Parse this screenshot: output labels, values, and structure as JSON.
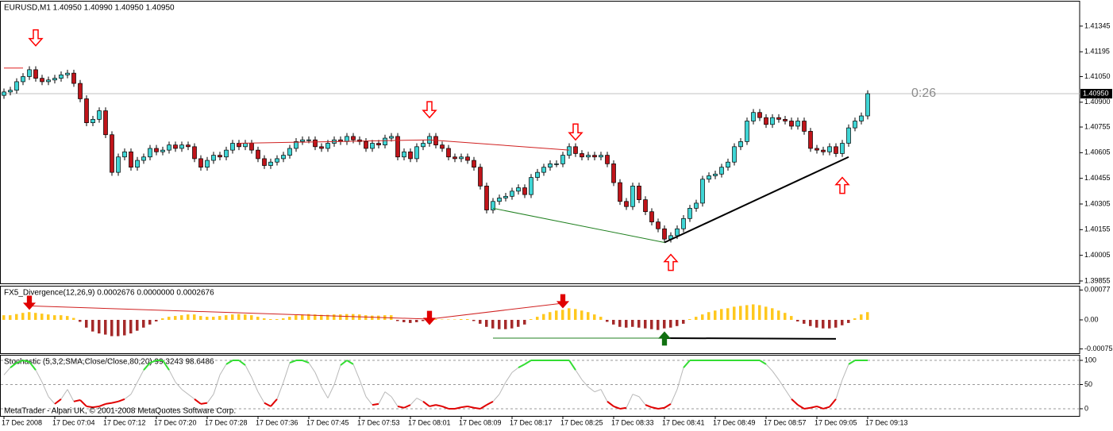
{
  "chart_data": [
    {
      "type": "candlestick",
      "title": "EURUSD,M1  1.40950 1.40990 1.40950 1.40950",
      "open": [
        1.4094,
        1.4096,
        1.4097,
        1.4102,
        1.4105,
        1.4109,
        1.4104,
        1.4102,
        1.4103,
        1.4104,
        1.4106,
        1.4107,
        1.4101,
        1.4092,
        1.4078,
        1.408,
        1.4085,
        1.4071,
        1.4049,
        1.4058,
        1.4061,
        1.4052,
        1.4056,
        1.4058,
        1.4063,
        1.4061,
        1.4062,
        1.4065,
        1.4063,
        1.4065,
        1.4064,
        1.4057,
        1.4052,
        1.4056,
        1.4059,
        1.4058,
        1.4062,
        1.4066,
        1.4064,
        1.4066,
        1.4062,
        1.4057,
        1.4053,
        1.4055,
        1.4057,
        1.4059,
        1.4063,
        1.4067,
        1.4068,
        1.4068,
        1.4064,
        1.4063,
        1.4066,
        1.4068,
        1.4067,
        1.407,
        1.4068,
        1.4067,
        1.4063,
        1.4066,
        1.4065,
        1.4069,
        1.407,
        1.4058,
        1.4061,
        1.4057,
        1.4064,
        1.4066,
        1.407,
        1.4065,
        1.4063,
        1.4058,
        1.4057,
        1.4058,
        1.4056,
        1.4052,
        1.4041,
        1.4027,
        1.4032,
        1.4034,
        1.4035,
        1.4038,
        1.404,
        1.4036,
        1.4046,
        1.4049,
        1.4052,
        1.4054,
        1.4054,
        1.4059,
        1.4064,
        1.406,
        1.4058,
        1.4059,
        1.4058,
        1.4059,
        1.4054,
        1.4043,
        1.4032,
        1.4029,
        1.4041,
        1.4033,
        1.4026,
        1.402,
        1.4016,
        1.401,
        1.4012,
        1.4016,
        1.4022,
        1.4028,
        1.4031,
        1.4045,
        1.4047,
        1.4048,
        1.4052,
        1.4055,
        1.4064,
        1.4067,
        1.4079,
        1.4084,
        1.4081,
        1.4077,
        1.4081,
        1.408,
        1.4079,
        1.4076,
        1.4079,
        1.4073,
        1.4063,
        1.4062,
        1.4061,
        1.4064,
        1.406,
        1.4066,
        1.4075,
        1.4079,
        1.4082
      ],
      "high": [
        1.4098,
        1.4099,
        1.4104,
        1.4107,
        1.4111,
        1.4111,
        1.4106,
        1.4105,
        1.4106,
        1.4108,
        1.4109,
        1.4109,
        1.4103,
        1.4094,
        1.4082,
        1.4087,
        1.4087,
        1.4073,
        1.406,
        1.4063,
        1.4063,
        1.4058,
        1.406,
        1.4065,
        1.4065,
        1.4064,
        1.4067,
        1.4067,
        1.4067,
        1.4067,
        1.4066,
        1.4059,
        1.4058,
        1.4061,
        1.4061,
        1.4064,
        1.4068,
        1.4068,
        1.4068,
        1.4068,
        1.4064,
        1.4059,
        1.4057,
        1.4059,
        1.4061,
        1.4065,
        1.4069,
        1.407,
        1.407,
        1.407,
        1.4066,
        1.4068,
        1.407,
        1.407,
        1.4072,
        1.4072,
        1.407,
        1.4069,
        1.4068,
        1.4068,
        1.4071,
        1.4072,
        1.4072,
        1.4063,
        1.4063,
        1.4066,
        1.4068,
        1.4072,
        1.4072,
        1.4067,
        1.4065,
        1.406,
        1.406,
        1.406,
        1.4058,
        1.4054,
        1.4043,
        1.4034,
        1.4036,
        1.4037,
        1.404,
        1.4042,
        1.4042,
        1.4048,
        1.4051,
        1.4054,
        1.4056,
        1.4056,
        1.4061,
        1.4066,
        1.4066,
        1.4062,
        1.4061,
        1.4061,
        1.4061,
        1.4061,
        1.4056,
        1.4045,
        1.4034,
        1.4043,
        1.4043,
        1.4035,
        1.4028,
        1.4022,
        1.4018,
        1.4014,
        1.4018,
        1.4024,
        1.403,
        1.4033,
        1.4047,
        1.4049,
        1.405,
        1.4054,
        1.4057,
        1.4066,
        1.4069,
        1.4081,
        1.4086,
        1.4086,
        1.4083,
        1.4083,
        1.4083,
        1.4082,
        1.4081,
        1.4081,
        1.4081,
        1.4075,
        1.4065,
        1.4064,
        1.4066,
        1.4066,
        1.4068,
        1.4077,
        1.4081,
        1.4084,
        1.4097
      ],
      "low": [
        1.4092,
        1.4094,
        1.4095,
        1.41,
        1.4103,
        1.4102,
        1.41,
        1.41,
        1.4101,
        1.4102,
        1.4104,
        1.4099,
        1.409,
        1.4076,
        1.4076,
        1.4078,
        1.4069,
        1.4047,
        1.4047,
        1.4056,
        1.405,
        1.405,
        1.4054,
        1.4056,
        1.4059,
        1.4059,
        1.406,
        1.4061,
        1.4061,
        1.4062,
        1.4055,
        1.405,
        1.405,
        1.4054,
        1.4056,
        1.4056,
        1.406,
        1.4062,
        1.4062,
        1.406,
        1.4055,
        1.4051,
        1.4051,
        1.4053,
        1.4055,
        1.4057,
        1.4061,
        1.4065,
        1.4066,
        1.4062,
        1.4061,
        1.4061,
        1.4064,
        1.4065,
        1.4065,
        1.4066,
        1.4065,
        1.4061,
        1.4061,
        1.4063,
        1.4063,
        1.4067,
        1.4056,
        1.4056,
        1.4055,
        1.4055,
        1.4062,
        1.4064,
        1.4063,
        1.4061,
        1.4056,
        1.4055,
        1.4055,
        1.4054,
        1.405,
        1.4039,
        1.4025,
        1.4025,
        1.403,
        1.4032,
        1.4033,
        1.4036,
        1.4034,
        1.4034,
        1.4044,
        1.4047,
        1.405,
        1.4052,
        1.4052,
        1.4057,
        1.4058,
        1.4056,
        1.4056,
        1.4056,
        1.4056,
        1.4052,
        1.4041,
        1.403,
        1.4027,
        1.4027,
        1.4031,
        1.4024,
        1.4018,
        1.4014,
        1.4008,
        1.4008,
        1.401,
        1.4014,
        1.402,
        1.4026,
        1.4029,
        1.4043,
        1.4045,
        1.4046,
        1.405,
        1.4053,
        1.4062,
        1.4065,
        1.4077,
        1.4079,
        1.4075,
        1.4075,
        1.4078,
        1.4077,
        1.4074,
        1.4074,
        1.4071,
        1.4061,
        1.406,
        1.4059,
        1.4059,
        1.4058,
        1.4058,
        1.4064,
        1.4073,
        1.4077,
        1.408
      ],
      "close": [
        1.4096,
        1.4097,
        1.4102,
        1.4105,
        1.4109,
        1.4104,
        1.4102,
        1.4103,
        1.4104,
        1.4106,
        1.4107,
        1.4101,
        1.4092,
        1.4078,
        1.408,
        1.4085,
        1.4071,
        1.4049,
        1.4058,
        1.4061,
        1.4052,
        1.4056,
        1.4058,
        1.4063,
        1.4061,
        1.4062,
        1.4065,
        1.4063,
        1.4065,
        1.4064,
        1.4057,
        1.4052,
        1.4056,
        1.4059,
        1.4058,
        1.4062,
        1.4066,
        1.4064,
        1.4066,
        1.4062,
        1.4057,
        1.4053,
        1.4055,
        1.4057,
        1.4059,
        1.4063,
        1.4067,
        1.4068,
        1.4068,
        1.4064,
        1.4063,
        1.4066,
        1.4068,
        1.4067,
        1.407,
        1.4068,
        1.4067,
        1.4063,
        1.4066,
        1.4065,
        1.4069,
        1.407,
        1.4058,
        1.4061,
        1.4057,
        1.4064,
        1.4066,
        1.407,
        1.4065,
        1.4063,
        1.4058,
        1.4057,
        1.4058,
        1.4056,
        1.4052,
        1.4041,
        1.4027,
        1.4032,
        1.4034,
        1.4035,
        1.4038,
        1.404,
        1.4036,
        1.4046,
        1.4049,
        1.4052,
        1.4054,
        1.4054,
        1.4059,
        1.4064,
        1.406,
        1.4058,
        1.4059,
        1.4058,
        1.4059,
        1.4054,
        1.4043,
        1.4032,
        1.4029,
        1.4041,
        1.4033,
        1.4026,
        1.402,
        1.4016,
        1.401,
        1.4012,
        1.4016,
        1.4022,
        1.4028,
        1.4031,
        1.4045,
        1.4047,
        1.4048,
        1.4052,
        1.4055,
        1.4064,
        1.4067,
        1.4079,
        1.4084,
        1.4081,
        1.4077,
        1.4081,
        1.408,
        1.4079,
        1.4076,
        1.4079,
        1.4073,
        1.4063,
        1.4062,
        1.4061,
        1.4064,
        1.406,
        1.4066,
        1.4075,
        1.4079,
        1.4082,
        1.4095
      ],
      "up_color": "#3fd5d5",
      "down_color": "#c0141a",
      "wick_color": "#000000",
      "ylim": [
        1.39841,
        1.41493
      ],
      "yticks": [
        1.41345,
        1.41195,
        {
          "value": 1.4105,
          "label": "1.41050"
        },
        {
          "value": 1.409,
          "label": "1.40900"
        },
        1.40755,
        1.40605,
        1.40455,
        1.40305,
        1.40155,
        {
          "value": 1.40005,
          "label": "1.40005"
        },
        1.39855
      ],
      "grid": false,
      "last_price": {
        "value": 1.4095,
        "label": "1.40950"
      },
      "countdown": "0:26",
      "arrow_style": "hollow",
      "trendlines": [
        {
          "color": "#e02020",
          "points": [
            [
              0,
              1.411
            ],
            [
              3,
              1.411
            ]
          ]
        },
        {
          "color": "#d02020",
          "points": [
            [
              37,
              1.4066
            ],
            [
              67,
              1.4068
            ],
            [
              89,
              1.4062
            ]
          ]
        },
        {
          "color": "#208020",
          "points": [
            [
              77,
              1.4028
            ],
            [
              104,
              1.4008
            ]
          ]
        },
        {
          "color": "#000000",
          "points": [
            [
              104,
              1.4008
            ],
            [
              133,
              1.4058
            ]
          ]
        }
      ],
      "arrows": [
        {
          "index": 5,
          "value": 1.4123,
          "direction": "down",
          "color": "#ff0000"
        },
        {
          "index": 67,
          "value": 1.4081,
          "direction": "down",
          "color": "#ff0000"
        },
        {
          "index": 90,
          "value": 1.4068,
          "direction": "down",
          "color": "#ff0000"
        },
        {
          "index": 105,
          "value": 1.4001,
          "direction": "up",
          "color": "#ff0000"
        },
        {
          "index": 132,
          "value": 1.4046,
          "direction": "up",
          "color": "#ff0000"
        }
      ]
    },
    {
      "type": "histogram",
      "title": "FX5_Divergence(12,26,9) 0.0002676 0.0000000 0.0002676",
      "values": [
        0.00012,
        0.00012,
        0.00015,
        0.00018,
        0.0002,
        0.00018,
        0.00016,
        0.00014,
        0.00012,
        0.00012,
        0.0001,
        5e-05,
        -5e-05,
        -0.0002,
        -0.0003,
        -0.00035,
        -0.00038,
        -0.00042,
        -0.00042,
        -0.0004,
        -0.00035,
        -0.00028,
        -0.0002,
        -0.00012,
        -4e-05,
        4e-05,
        8e-05,
        0.0001,
        0.00012,
        0.00014,
        0.00014,
        0.0001,
        8e-05,
        8e-05,
        0.0001,
        0.00012,
        0.00014,
        0.00015,
        0.00014,
        0.00012,
        8e-05,
        4e-05,
        2e-05,
        2e-05,
        4e-05,
        8e-05,
        0.00012,
        0.00014,
        0.00015,
        0.00014,
        0.00013,
        0.00013,
        0.00014,
        0.00014,
        0.00015,
        0.00015,
        0.00014,
        0.00012,
        0.00011,
        0.00011,
        0.00012,
        0.00012,
        -3e-05,
        -6e-05,
        -8e-05,
        -6e-05,
        -3e-05,
        2e-05,
        2e-05,
        1e-05,
        1e-05,
        1e-05,
        2e-05,
        2e-05,
        -3e-05,
        -0.0001,
        -0.00018,
        -0.00022,
        -0.00024,
        -0.00024,
        -0.00022,
        -0.00018,
        -0.00012,
        2e-05,
        8e-05,
        0.00015,
        0.0002,
        0.00024,
        0.00026,
        0.0003,
        0.00028,
        0.00024,
        0.0002,
        0.00014,
        8e-05,
        -5e-05,
        -0.00012,
        -0.00018,
        -0.0002,
        -0.00018,
        -0.0002,
        -0.00022,
        -0.00024,
        -0.00026,
        -0.00022,
        -0.0002,
        -0.00016,
        -0.0001,
        2e-05,
        8e-05,
        0.00014,
        0.0002,
        0.00024,
        0.00028,
        0.0003,
        0.00034,
        0.00036,
        0.00038,
        0.0004,
        0.00038,
        0.00034,
        0.0003,
        0.00024,
        0.00018,
        0.0001,
        -4e-05,
        -0.0001,
        -0.00016,
        -0.0002,
        -0.00022,
        -0.00022,
        -0.0002,
        -0.00014,
        -8e-05,
        4e-05,
        0.00014,
        0.0002
      ],
      "positive_color": "#ffc81e",
      "negative_color": "#a52a2a",
      "ylim": [
        -0.00086,
        0.00088
      ],
      "yticks": [
        0.00077,
        {
          "value": 0,
          "label": "0.00"
        },
        -0.00075
      ],
      "grid": false,
      "arrow_style": "filled",
      "trendlines": [
        {
          "color": "#d02020",
          "points": [
            [
              4,
              0.00036
            ],
            [
              67,
              2e-05
            ],
            [
              88,
              0.00043
            ]
          ]
        },
        {
          "color": "#208020",
          "points": [
            [
              77,
              -0.00047
            ],
            [
              104,
              -0.00047
            ]
          ]
        },
        {
          "color": "#000000",
          "points": [
            [
              104,
              -0.00047
            ],
            [
              131,
              -0.00049
            ]
          ]
        }
      ],
      "arrows": [
        {
          "index": 4,
          "value": 0.00028,
          "direction": "down",
          "color": "#e00000"
        },
        {
          "index": 67,
          "value": -0.00011,
          "direction": "down",
          "color": "#e00000"
        },
        {
          "index": 88,
          "value": 0.00032,
          "direction": "down",
          "color": "#e00000"
        },
        {
          "index": 104,
          "value": -0.00032,
          "direction": "up",
          "color": "#107010"
        }
      ]
    },
    {
      "type": "line",
      "title": "Stochastic (5,3,2,SMA,Close/Close,80,20) 99.3243 98.6486",
      "footer": "MetaTrader - Alpari UK, © 2001-2008 MetaQuotes Software Corp.",
      "values": [
        70,
        85,
        95,
        100,
        97,
        80,
        55,
        25,
        10,
        20,
        40,
        15,
        18,
        5,
        3,
        5,
        10,
        12,
        15,
        20,
        30,
        55,
        80,
        95,
        100,
        100,
        80,
        55,
        40,
        30,
        20,
        10,
        12,
        30,
        70,
        92,
        100,
        100,
        90,
        65,
        35,
        12,
        5,
        20,
        55,
        95,
        100,
        100,
        95,
        75,
        45,
        22,
        50,
        90,
        100,
        92,
        60,
        25,
        8,
        10,
        35,
        25,
        5,
        2,
        8,
        22,
        15,
        5,
        8,
        5,
        0,
        0,
        3,
        5,
        2,
        0,
        8,
        15,
        30,
        55,
        75,
        85,
        92,
        100,
        100,
        100,
        100,
        100,
        100,
        100,
        80,
        60,
        45,
        35,
        40,
        15,
        5,
        0,
        2,
        30,
        25,
        8,
        3,
        0,
        2,
        10,
        40,
        85,
        100,
        100,
        100,
        100,
        100,
        100,
        100,
        100,
        100,
        100,
        100,
        100,
        92,
        78,
        60,
        40,
        20,
        8,
        0,
        2,
        5,
        0,
        4,
        20,
        60,
        92,
        100,
        100,
        100
      ],
      "color": "#b8b8b8",
      "upper_color": "#33dd33",
      "lower_color": "#e00000",
      "upper_level": 80,
      "lower_level": 20,
      "ylim": [
        -14.8,
        111.5
      ],
      "yticks": [
        100,
        50,
        0
      ],
      "grid": true,
      "categories": [
        "17 Dec 2008",
        null,
        null,
        null,
        null,
        null,
        null,
        null,
        "17 Dec 07:04",
        null,
        null,
        null,
        null,
        null,
        null,
        null,
        "17 Dec 07:12",
        null,
        null,
        null,
        null,
        null,
        null,
        null,
        "17 Dec 07:20",
        null,
        null,
        null,
        null,
        null,
        null,
        null,
        "17 Dec 07:28",
        null,
        null,
        null,
        null,
        null,
        null,
        null,
        "17 Dec 07:36",
        null,
        null,
        null,
        null,
        null,
        null,
        null,
        "17 Dec 07:45",
        null,
        null,
        null,
        null,
        null,
        null,
        null,
        "17 Dec 07:53",
        null,
        null,
        null,
        null,
        null,
        null,
        null,
        "17 Dec 08:01",
        null,
        null,
        null,
        null,
        null,
        null,
        null,
        "17 Dec 08:09",
        null,
        null,
        null,
        null,
        null,
        null,
        null,
        "17 Dec 08:17",
        null,
        null,
        null,
        null,
        null,
        null,
        null,
        "17 Dec 08:25",
        null,
        null,
        null,
        null,
        null,
        null,
        null,
        "17 Dec 08:33",
        null,
        null,
        null,
        null,
        null,
        null,
        null,
        "17 Dec 08:41",
        null,
        null,
        null,
        null,
        null,
        null,
        null,
        "17 Dec 08:49",
        null,
        null,
        null,
        null,
        null,
        null,
        null,
        "17 Dec 08:57",
        null,
        null,
        null,
        null,
        null,
        null,
        null,
        "17 Dec 09:05",
        null,
        null,
        null,
        null,
        null,
        null,
        null,
        "17 Dec 09:13"
      ]
    }
  ]
}
